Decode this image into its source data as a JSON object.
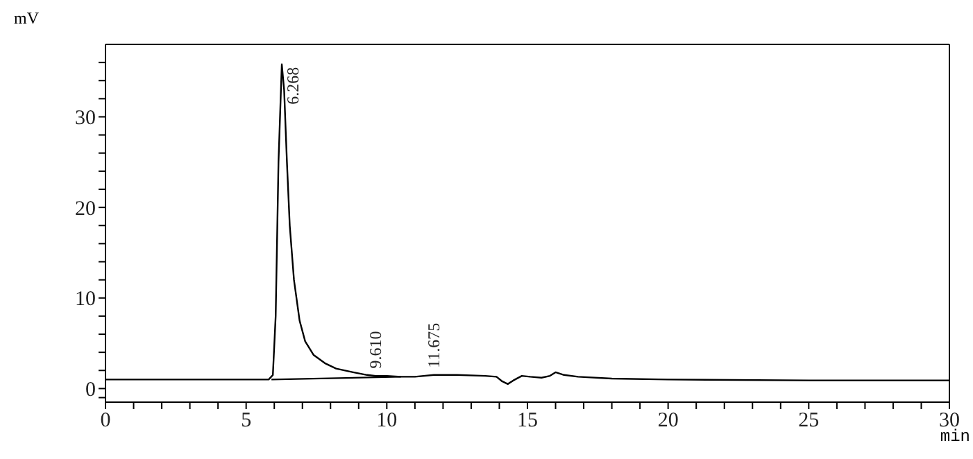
{
  "chart_data": {
    "type": "line",
    "xlabel": "min",
    "ylabel": "mV",
    "xlim": [
      0,
      30
    ],
    "ylim": [
      -1.5,
      38
    ],
    "xticks": [
      0,
      {
        "value": 1,
        "label": null
      },
      {
        "value": 2,
        "label": null
      },
      {
        "value": 3,
        "label": null
      },
      {
        "value": 4,
        "label": null
      },
      5,
      {
        "value": 6,
        "label": null
      },
      {
        "value": 7,
        "label": null
      },
      {
        "value": 8,
        "label": null
      },
      {
        "value": 9,
        "label": null
      },
      10,
      {
        "value": 11,
        "label": null
      },
      {
        "value": 12,
        "label": null
      },
      {
        "value": 13,
        "label": null
      },
      {
        "value": 14,
        "label": null
      },
      15,
      {
        "value": 16,
        "label": null
      },
      {
        "value": 17,
        "label": null
      },
      {
        "value": 18,
        "label": null
      },
      {
        "value": 19,
        "label": null
      },
      20,
      {
        "value": 21,
        "label": null
      },
      {
        "value": 22,
        "label": null
      },
      {
        "value": 23,
        "label": null
      },
      {
        "value": 24,
        "label": null
      },
      25,
      {
        "value": 26,
        "label": null
      },
      {
        "value": 27,
        "label": null
      },
      {
        "value": 28,
        "label": null
      },
      {
        "value": 29,
        "label": null
      },
      30
    ],
    "yticks": [
      {
        "value": -1,
        "label": null
      },
      0,
      {
        "value": 2,
        "label": null
      },
      {
        "value": 4,
        "label": null
      },
      {
        "value": 6,
        "label": null
      },
      {
        "value": 8,
        "label": null
      },
      10,
      {
        "value": 12,
        "label": null
      },
      {
        "value": 14,
        "label": null
      },
      {
        "value": 16,
        "label": null
      },
      {
        "value": 18,
        "label": null
      },
      20,
      {
        "value": 22,
        "label": null
      },
      {
        "value": 24,
        "label": null
      },
      {
        "value": 26,
        "label": null
      },
      {
        "value": 28,
        "label": null
      },
      30,
      {
        "value": 32,
        "label": null
      },
      {
        "value": 34,
        "label": null
      },
      {
        "value": 36,
        "label": null
      }
    ],
    "marker": "none",
    "line_style": "solid",
    "series": [
      {
        "color": "#000000",
        "x": [
          0,
          2,
          5,
          5.8,
          5.95,
          6.05,
          6.15,
          6.268,
          6.35,
          6.45,
          6.55,
          6.7,
          6.9,
          7.1,
          7.4,
          7.8,
          8.2,
          8.8,
          9.3,
          9.61,
          10,
          10.5,
          11,
          11.675,
          12.5,
          13.5,
          13.9,
          14.1,
          14.3,
          14.5,
          14.8,
          15.1,
          15.5,
          15.8,
          16,
          16.3,
          16.8,
          18,
          20,
          25,
          30
        ],
        "values": [
          1.0,
          1.0,
          1.0,
          1.0,
          1.5,
          8,
          25,
          35.8,
          33,
          25,
          18,
          12,
          7.5,
          5.2,
          3.7,
          2.8,
          2.2,
          1.8,
          1.5,
          1.4,
          1.4,
          1.3,
          1.3,
          1.5,
          1.5,
          1.4,
          1.3,
          0.8,
          0.5,
          0.9,
          1.4,
          1.3,
          1.2,
          1.4,
          1.8,
          1.5,
          1.3,
          1.1,
          1.0,
          0.9,
          0.9
        ]
      },
      {
        "color": "#000000",
        "x": [
          5.9,
          10.5
        ],
        "values": [
          1.0,
          1.3
        ]
      }
    ],
    "annotations": [
      {
        "text": "6.268",
        "x": 6.268,
        "y": 35.8
      },
      {
        "text": "9.610",
        "x": 9.61,
        "y": 1.45
      },
      {
        "text": "11.675",
        "x": 11.675,
        "y": 1.5
      }
    ]
  }
}
